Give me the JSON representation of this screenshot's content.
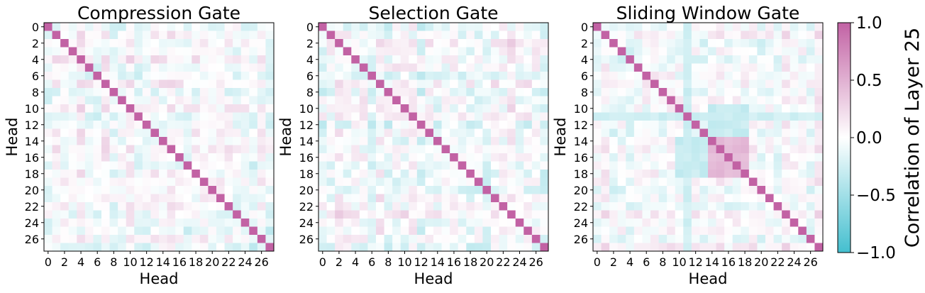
{
  "chart_data": [
    {
      "type": "heatmap",
      "title": "Compression Gate",
      "xlabel": "Head",
      "ylabel": "Head",
      "size": 28,
      "x_ticks": [
        "0",
        "2",
        "4",
        "6",
        "8",
        "10",
        "12",
        "14",
        "16",
        "18",
        "20",
        "22",
        "24",
        "26"
      ],
      "y_ticks": [
        "0",
        "2",
        "4",
        "6",
        "8",
        "10",
        "12",
        "14",
        "16",
        "18",
        "20",
        "22",
        "24",
        "26"
      ],
      "diagonal": 1.0,
      "blocks": [],
      "pattern_seed": 11,
      "pattern_amplitude": 0.22
    },
    {
      "type": "heatmap",
      "title": "Selection Gate",
      "xlabel": "Head",
      "ylabel": "Head",
      "size": 28,
      "x_ticks": [
        "0",
        "2",
        "4",
        "6",
        "8",
        "10",
        "12",
        "14",
        "16",
        "18",
        "20",
        "22",
        "24",
        "26"
      ],
      "y_ticks": [
        "0",
        "2",
        "4",
        "6",
        "8",
        "10",
        "12",
        "14",
        "16",
        "18",
        "20",
        "22",
        "24",
        "26"
      ],
      "diagonal": 1.0,
      "blocks": [],
      "pattern_seed": 23,
      "pattern_amplitude": 0.25
    },
    {
      "type": "heatmap",
      "title": "Sliding Window Gate",
      "xlabel": "Head",
      "ylabel": "Head",
      "size": 28,
      "x_ticks": [
        "0",
        "2",
        "4",
        "6",
        "8",
        "10",
        "12",
        "14",
        "16",
        "18",
        "20",
        "22",
        "24",
        "26"
      ],
      "y_ticks": [
        "0",
        "2",
        "4",
        "6",
        "8",
        "10",
        "12",
        "14",
        "16",
        "18",
        "20",
        "22",
        "24",
        "26"
      ],
      "diagonal": 1.0,
      "blocks": [
        {
          "rows": [
            14,
            18
          ],
          "cols": [
            14,
            18
          ],
          "value": 0.45
        },
        {
          "rows": [
            14,
            18
          ],
          "cols": [
            10,
            13
          ],
          "value": -0.3
        },
        {
          "rows": [
            10,
            13
          ],
          "cols": [
            14,
            18
          ],
          "value": -0.3
        },
        {
          "rows": [
            11,
            11
          ],
          "cols": [
            0,
            27
          ],
          "value": -0.25
        }
      ],
      "pattern_seed": 37,
      "pattern_amplitude": 0.2
    }
  ],
  "colorbar": {
    "label": "Correlation of Layer 25",
    "ticks": [
      "1.0",
      "0.5",
      "0.0",
      "−0.5",
      "−1.0"
    ],
    "tick_values": [
      1.0,
      0.5,
      0.0,
      -0.5,
      -1.0
    ],
    "vmin": -1.0,
    "vmax": 1.0,
    "color_low": "#44bfcf",
    "color_mid": "#ffffff",
    "color_high": "#c262a4"
  }
}
